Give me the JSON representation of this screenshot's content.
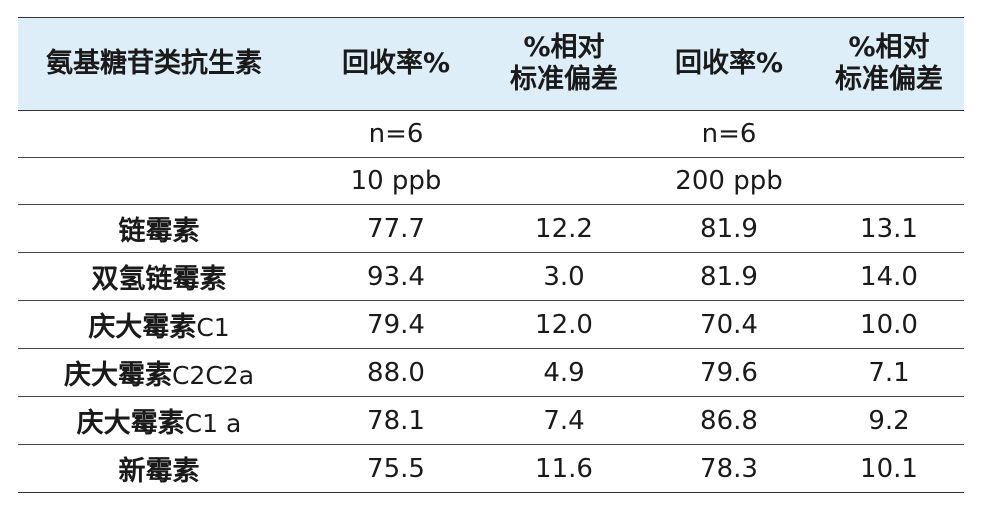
{
  "table": {
    "headers": {
      "name": "氨基糖苷类抗生素",
      "recovery1": "回收率%",
      "rsd1_line1": "%相对",
      "rsd1_line2": "标准偏差",
      "recovery2": "回收率%",
      "rsd2_line1": "%相对",
      "rsd2_line2": "标准偏差"
    },
    "n_row": {
      "n1": "n=6",
      "n2": "n=6"
    },
    "conc_row": {
      "c1": "10 ppb",
      "c2": "200 ppb"
    },
    "rows": [
      {
        "name": "链霉素",
        "suffix": "",
        "rec1": "77.7",
        "rsd1": "12.2",
        "rec2": "81.9",
        "rsd2": "13.1"
      },
      {
        "name": "双氢链霉素",
        "suffix": "",
        "rec1": "93.4",
        "rsd1": "3.0",
        "rec2": "81.9",
        "rsd2": "14.0"
      },
      {
        "name": "庆大霉素",
        "suffix": "C1",
        "rec1": "79.4",
        "rsd1": "12.0",
        "rec2": "70.4",
        "rsd2": "10.0"
      },
      {
        "name": "庆大霉素",
        "suffix": "C2C2a",
        "rec1": "88.0",
        "rsd1": "4.9",
        "rec2": "79.6",
        "rsd2": "7.1"
      },
      {
        "name": "庆大霉素",
        "suffix": "C1 a",
        "rec1": "78.1",
        "rsd1": "7.4",
        "rec2": "86.8",
        "rsd2": "9.2"
      },
      {
        "name": "新霉素",
        "suffix": "",
        "rec1": "75.5",
        "rsd1": "11.6",
        "rec2": "78.3",
        "rsd2": "10.1"
      }
    ]
  }
}
